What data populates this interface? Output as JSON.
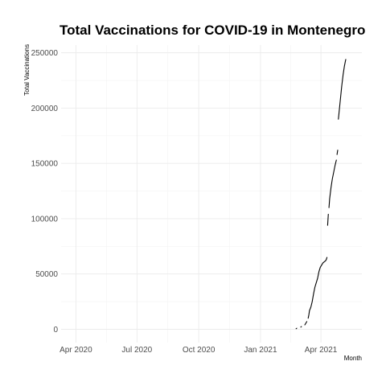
{
  "chart_data": {
    "type": "line",
    "title": "Total Vaccinations for COVID-19 in Montenegro",
    "xlabel": "Month",
    "ylabel": "Total Vaccinations",
    "x_ticks": [
      "Apr 2020",
      "Jul 2020",
      "Oct 2020",
      "Jan 2021",
      "Apr 2021"
    ],
    "y_ticks": [
      "0",
      "50000",
      "100000",
      "150000",
      "200000",
      "250000"
    ],
    "xlim": [
      "2020-03-10",
      "2021-06-01"
    ],
    "ylim": [
      -12000,
      257000
    ],
    "grid": true,
    "series": [
      {
        "segments": [
          [
            [
              "2021-02-23",
              500
            ],
            [
              "2021-02-24",
              1000
            ]
          ],
          [
            [
              "2021-03-02",
              2000
            ],
            [
              "2021-03-03",
              2500
            ]
          ],
          [
            [
              "2021-03-08",
              4000
            ],
            [
              "2021-03-10",
              6000
            ],
            [
              "2021-03-11",
              7000
            ]
          ],
          [
            [
              "2021-03-13",
              10000
            ],
            [
              "2021-03-14",
              13000
            ],
            [
              "2021-03-15",
              17000
            ],
            [
              "2021-03-17",
              20000
            ],
            [
              "2021-03-19",
              25000
            ],
            [
              "2021-03-21",
              32000
            ],
            [
              "2021-03-23",
              38000
            ],
            [
              "2021-03-25",
              42000
            ],
            [
              "2021-03-27",
              46000
            ],
            [
              "2021-03-29",
              52000
            ],
            [
              "2021-03-31",
              56000
            ],
            [
              "2021-04-02",
              58000
            ],
            [
              "2021-04-04",
              60000
            ],
            [
              "2021-04-06",
              61000
            ],
            [
              "2021-04-08",
              62000
            ],
            [
              "2021-04-09",
              63000
            ],
            [
              "2021-04-10",
              65000
            ]
          ],
          [
            [
              "2021-04-11",
              94000
            ],
            [
              "2021-04-12",
              104000
            ]
          ],
          [
            [
              "2021-04-13",
              110000
            ],
            [
              "2021-04-14",
              118000
            ],
            [
              "2021-04-16",
              128000
            ],
            [
              "2021-04-18",
              136000
            ],
            [
              "2021-04-20",
              142000
            ],
            [
              "2021-04-22",
              148000
            ],
            [
              "2021-04-24",
              153000
            ]
          ],
          [
            [
              "2021-04-25",
              158000
            ],
            [
              "2021-04-26",
              162000
            ]
          ],
          [
            [
              "2021-04-27",
              190000
            ],
            [
              "2021-04-28",
              196000
            ],
            [
              "2021-04-30",
              208000
            ],
            [
              "2021-05-02",
              220000
            ],
            [
              "2021-05-04",
              230000
            ],
            [
              "2021-05-06",
              238000
            ],
            [
              "2021-05-08",
              244000
            ]
          ]
        ]
      }
    ]
  }
}
